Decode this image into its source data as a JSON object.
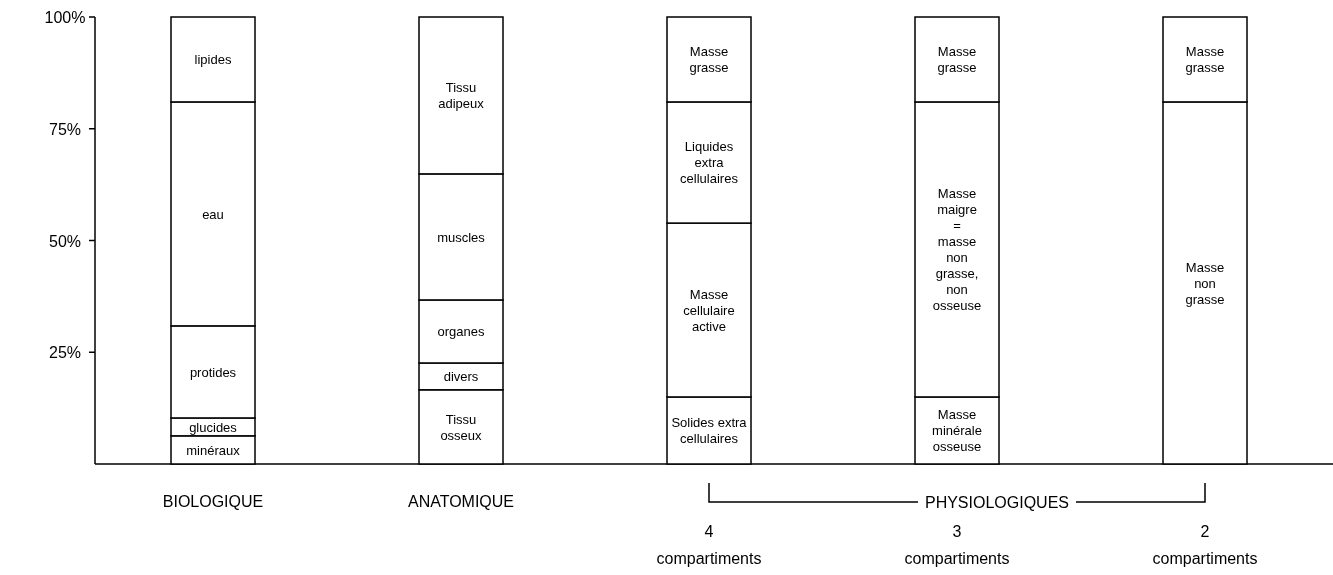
{
  "chart_data": {
    "type": "bar",
    "stacked": true,
    "categories": [
      "BIOLOGIQUE",
      "ANATOMIQUE",
      "4\ncompartiments",
      "3\ncompartiments",
      "2\ncompartiments"
    ],
    "series": [
      {
        "color": "#ffffff",
        "values": [
          6.3,
          16.6,
          15.0,
          15.0,
          81.0
        ],
        "value_labels": [
          "minéraux",
          "Tissu\nosseux",
          "Solides extra\ncellulaires",
          "Masse\nminérale\nosseuse",
          "Masse\nnon\ngrasse"
        ]
      },
      {
        "color": "#ffffff",
        "values": [
          4.0,
          6.0,
          38.9,
          66.0,
          19.0
        ],
        "value_labels": [
          "glucides",
          "divers",
          "Masse\ncellulaire\nactive",
          "Masse\nmaigre\n=\nmasse\nnon\ngrasse,\nnon\nosseuse",
          "Masse\ngrasse"
        ]
      },
      {
        "color": "#ffffff",
        "values": [
          20.6,
          14.1,
          27.1,
          19.0,
          null
        ],
        "value_labels": [
          "protides",
          "organes",
          "Liquides\nextra\ncellulaires",
          "Masse\ngrasse",
          null
        ]
      },
      {
        "color": "#ffffff",
        "values": [
          50.1,
          28.2,
          19.0,
          null,
          null
        ],
        "value_labels": [
          "eau",
          "muscles",
          "Masse\ngrasse",
          null,
          null
        ]
      },
      {
        "color": "#ffffff",
        "values": [
          19.0,
          35.1,
          null,
          null,
          null
        ],
        "value_labels": [
          "lipides",
          "Tissu\nadipeux",
          null,
          null,
          null
        ]
      }
    ],
    "ylim": [
      0,
      100
    ],
    "yticks": [
      {
        "value": 25,
        "label": "25%"
      },
      {
        "value": 50,
        "label": "50%"
      },
      {
        "value": 75,
        "label": "75%"
      },
      {
        "value": 100,
        "label": "100%"
      }
    ],
    "annotations": [
      "PHYSIOLOGIQUES"
    ]
  }
}
